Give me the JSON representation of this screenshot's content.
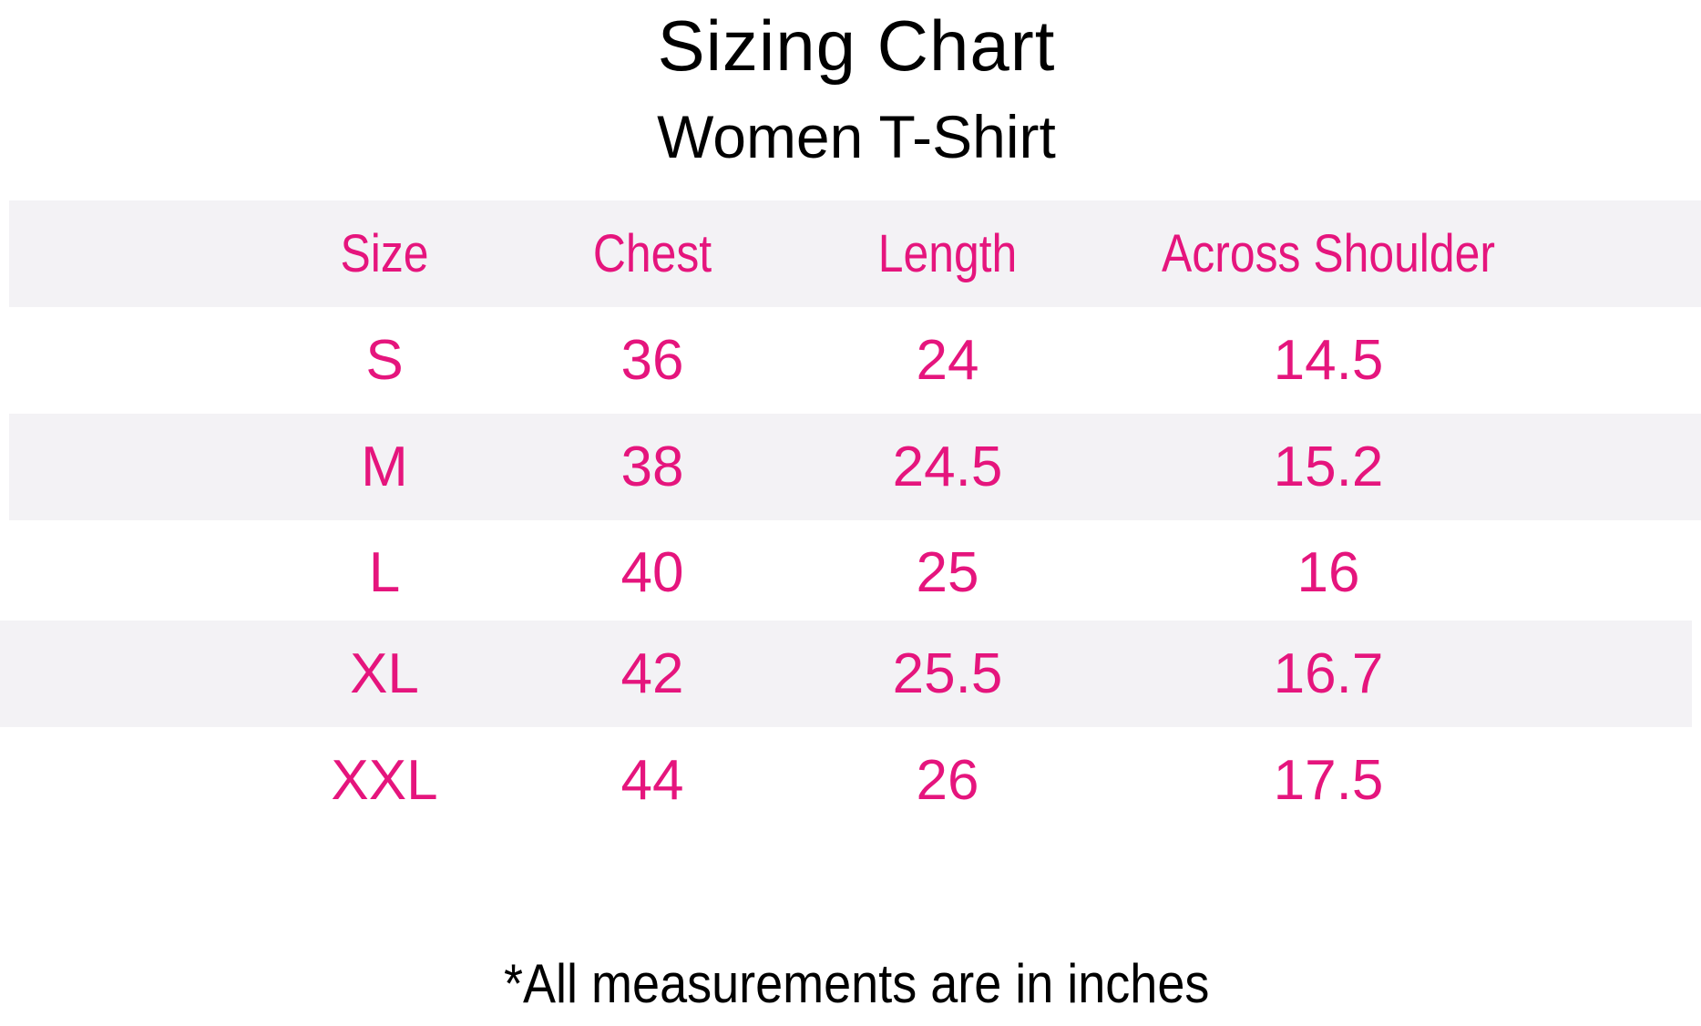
{
  "title": "Sizing Chart",
  "subtitle": "Women T-Shirt",
  "colors": {
    "accent": "#e5157d",
    "row_shade": "#f3f2f5",
    "title_text": "#000000"
  },
  "table": {
    "headers": [
      "Size",
      "Chest",
      "Length",
      "Across Shoulder"
    ],
    "rows": [
      [
        "S",
        "36",
        "24",
        "14.5"
      ],
      [
        "M",
        "38",
        "24.5",
        "15.2"
      ],
      [
        "L",
        "40",
        "25",
        "16"
      ],
      [
        "XL",
        "42",
        "25.5",
        "16.7"
      ],
      [
        "XXL",
        "44",
        "26",
        "17.5"
      ]
    ]
  },
  "footnote": "*All measurements are in inches"
}
